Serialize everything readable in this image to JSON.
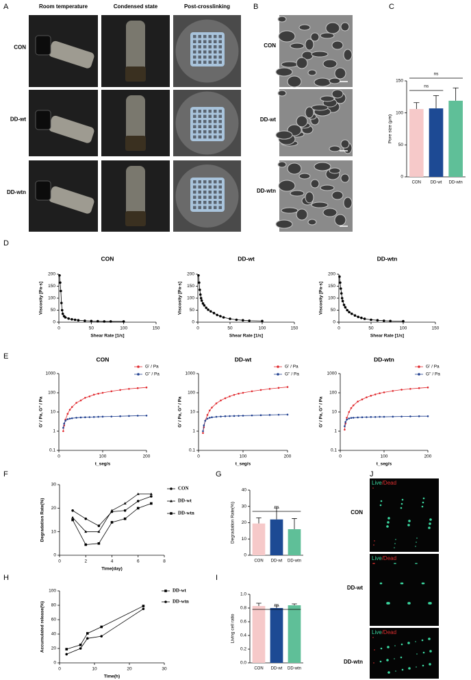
{
  "panel_labels": [
    "A",
    "B",
    "C",
    "D",
    "E",
    "F",
    "G",
    "H",
    "I",
    "J"
  ],
  "photos_A": {
    "columns": [
      "Room temperature",
      "Condensed state",
      "Post-crosslinking"
    ],
    "rows": [
      "CON",
      "DD-wt",
      "DD-wtn"
    ]
  },
  "photos_B": {
    "rows": [
      "CON",
      "DD-wt",
      "DD-wtn"
    ]
  },
  "photos_J": {
    "rows": [
      "CON",
      "DD-wt",
      "DD-wtn"
    ],
    "stain_labels": [
      "Live",
      "/Dead"
    ]
  },
  "chart_data": [
    {
      "type": "bar",
      "ylabel": "Pore size (μm)",
      "categories": [
        "CON",
        "DD-wt",
        "DD-wtn"
      ],
      "values": [
        106,
        107,
        119
      ],
      "errors": [
        10,
        20,
        20
      ],
      "colors": [
        "#f6c9c9",
        "#1d4a94",
        "#5fbf98"
      ],
      "ylim": [
        0,
        150
      ],
      "yticks": [
        0,
        50,
        100,
        150
      ],
      "annotations": [
        "ns",
        "ns"
      ]
    },
    {
      "type": "line",
      "title": "CON",
      "xlabel": "Shear Rate [1/s]",
      "ylabel": "Viscosity [Pa·s]",
      "color": "#000000",
      "marker": "circle",
      "x": [
        1,
        2,
        3,
        4,
        5,
        6,
        8,
        10,
        15,
        20,
        25,
        30,
        40,
        50,
        60,
        70,
        80,
        100
      ],
      "values": [
        195,
        165,
        130,
        80,
        50,
        35,
        25,
        20,
        15,
        12,
        10,
        8,
        6,
        5,
        4,
        3,
        3,
        3
      ],
      "xlim": [
        0,
        150
      ],
      "xticks": [
        0,
        50,
        100,
        150
      ],
      "ylim": [
        0,
        200
      ],
      "yticks": [
        0,
        50,
        100,
        150,
        200
      ]
    },
    {
      "type": "line",
      "title": "DD-wt",
      "xlabel": "Shear Rate [1/s]",
      "ylabel": "Viscosity [Pa·s]",
      "color": "#000000",
      "marker": "circle",
      "x": [
        1,
        2,
        3,
        4,
        5,
        6,
        8,
        10,
        13,
        16,
        20,
        25,
        30,
        35,
        40,
        50,
        60,
        70,
        80,
        100
      ],
      "values": [
        195,
        165,
        135,
        115,
        100,
        90,
        78,
        70,
        60,
        52,
        45,
        38,
        30,
        25,
        20,
        14,
        10,
        8,
        6,
        5
      ],
      "xlim": [
        0,
        150
      ],
      "xticks": [
        0,
        50,
        100,
        150
      ],
      "ylim": [
        0,
        200
      ],
      "yticks": [
        0,
        50,
        100,
        150,
        200
      ]
    },
    {
      "type": "line",
      "title": "DD-wtn",
      "xlabel": "Shear Rate [1/s]",
      "ylabel": "Viscosity [Pa·s]",
      "color": "#000000",
      "marker": "circle",
      "x": [
        1,
        2,
        3,
        4,
        5,
        6,
        8,
        10,
        13,
        16,
        20,
        25,
        30,
        35,
        40,
        50,
        60,
        70,
        80,
        100
      ],
      "values": [
        190,
        165,
        140,
        120,
        100,
        88,
        72,
        62,
        50,
        42,
        35,
        28,
        22,
        18,
        14,
        10,
        8,
        6,
        5,
        4
      ],
      "xlim": [
        0,
        150
      ],
      "xticks": [
        0,
        50,
        100,
        150
      ],
      "ylim": [
        0,
        200
      ],
      "yticks": [
        0,
        50,
        100,
        150,
        200
      ]
    },
    {
      "type": "line",
      "title": "CON",
      "xlabel": "t_seg/s",
      "ylabel": "G' / Pa, G'' / Pa",
      "log_y": true,
      "x": [
        10,
        12,
        15,
        20,
        25,
        30,
        40,
        50,
        60,
        70,
        80,
        90,
        100,
        120,
        140,
        160,
        180,
        200
      ],
      "series": [
        {
          "name": "G' / Pa",
          "color": "#e0262b",
          "marker": "circle",
          "values": [
            1,
            2,
            4,
            8,
            13,
            18,
            30,
            40,
            55,
            65,
            80,
            90,
            100,
            120,
            140,
            160,
            175,
            190
          ]
        },
        {
          "name": "G'' / Pa",
          "color": "#1f3f8f",
          "marker": "circle",
          "values": [
            1.5,
            2.5,
            3.5,
            4.2,
            4.5,
            4.7,
            5,
            5.2,
            5.3,
            5.4,
            5.5,
            5.6,
            5.7,
            5.8,
            6,
            6.2,
            6.4,
            6.5
          ]
        }
      ],
      "xlim": [
        0,
        200
      ],
      "xticks": [
        0,
        100,
        200
      ],
      "ylim": [
        0.1,
        1000
      ],
      "yticks": [
        0.1,
        1,
        10,
        100,
        1000
      ]
    },
    {
      "type": "line",
      "title": "DD-wt",
      "xlabel": "t_seg/s",
      "ylabel": "G' / Pa, G'' / Pa",
      "log_y": true,
      "x": [
        10,
        12,
        15,
        20,
        25,
        30,
        40,
        50,
        60,
        70,
        80,
        90,
        100,
        120,
        140,
        160,
        180,
        200
      ],
      "series": [
        {
          "name": "G' / Pa",
          "color": "#e0262b",
          "marker": "circle",
          "values": [
            0.8,
            1.6,
            3.5,
            7,
            12,
            17,
            28,
            40,
            52,
            65,
            78,
            90,
            100,
            120,
            140,
            160,
            180,
            200
          ]
        },
        {
          "name": "G'' / Pa",
          "color": "#1f3f8f",
          "marker": "circle",
          "values": [
            1,
            2,
            3.5,
            4.5,
            5,
            5.3,
            5.6,
            5.8,
            6,
            6.1,
            6.2,
            6.3,
            6.4,
            6.6,
            6.8,
            7,
            7.2,
            7.3
          ]
        }
      ],
      "xlim": [
        0,
        200
      ],
      "xticks": [
        0,
        100,
        200
      ],
      "ylim": [
        0.1,
        1000
      ],
      "yticks": [
        0.1,
        1,
        10,
        100,
        1000
      ]
    },
    {
      "type": "line",
      "title": "DD-wtn",
      "xlabel": "t_seg/s",
      "ylabel": "G' / Pa, G'' / Pa",
      "log_y": true,
      "x": [
        10,
        12,
        15,
        20,
        25,
        30,
        40,
        50,
        60,
        70,
        80,
        90,
        100,
        120,
        140,
        160,
        180,
        200
      ],
      "series": [
        {
          "name": "G' / Pa",
          "color": "#e0262b",
          "marker": "circle",
          "values": [
            1.2,
            2.5,
            5,
            10,
            16,
            22,
            35,
            45,
            58,
            70,
            82,
            95,
            105,
            125,
            145,
            160,
            175,
            190
          ]
        },
        {
          "name": "G'' / Pa",
          "color": "#1f3f8f",
          "marker": "circle",
          "values": [
            1.8,
            3,
            4,
            4.6,
            4.9,
            5,
            5.2,
            5.3,
            5.4,
            5.5,
            5.5,
            5.6,
            5.6,
            5.7,
            5.8,
            5.9,
            6,
            6
          ]
        }
      ],
      "xlim": [
        0,
        200
      ],
      "xticks": [
        0,
        100,
        200
      ],
      "ylim": [
        0.1,
        1000
      ],
      "yticks": [
        0.1,
        1,
        10,
        100,
        1000
      ]
    },
    {
      "type": "line",
      "xlabel": "Time(day)",
      "ylabel": "Degradation Rate(%)",
      "x": [
        1,
        2,
        3,
        4,
        5,
        6,
        7
      ],
      "series": [
        {
          "name": "CON",
          "color": "#000000",
          "marker": "circle",
          "values": [
            19,
            15.5,
            12.5,
            18.5,
            19,
            23,
            25
          ]
        },
        {
          "name": "DD-wt",
          "color": "#000000",
          "marker": "triangle",
          "values": [
            16,
            10,
            10,
            19,
            22,
            26,
            26
          ]
        },
        {
          "name": "DD-wtn",
          "color": "#000000",
          "marker": "square",
          "values": [
            15,
            4.5,
            5,
            14,
            15.5,
            20,
            22
          ]
        }
      ],
      "xlim": [
        0,
        8
      ],
      "xticks": [
        0,
        2,
        4,
        6,
        8
      ],
      "ylim": [
        0,
        30
      ],
      "yticks": [
        0,
        10,
        20,
        30
      ]
    },
    {
      "type": "bar",
      "ylabel": "Degradation Rate(%)",
      "categories": [
        "CON",
        "DD-wt",
        "DD-wtn"
      ],
      "values": [
        19.5,
        22,
        16
      ],
      "errors": [
        3.5,
        7,
        6.5
      ],
      "colors": [
        "#f6c9c9",
        "#1d4a94",
        "#5fbf98"
      ],
      "ylim": [
        0,
        40
      ],
      "yticks": [
        0,
        10,
        20,
        30,
        40
      ],
      "annotations": [
        "ns"
      ]
    },
    {
      "type": "line",
      "xlabel": "Time(h)",
      "ylabel": "Accumulated release(%)",
      "x": [
        2,
        6,
        8,
        12,
        24
      ],
      "series": [
        {
          "name": "DD-wt",
          "color": "#000000",
          "marker": "square",
          "values": [
            19,
            25,
            41,
            50,
            79
          ]
        },
        {
          "name": "DD-wtn",
          "color": "#000000",
          "marker": "circle",
          "values": [
            12,
            20,
            34,
            37,
            75
          ]
        }
      ],
      "xlim": [
        0,
        30
      ],
      "xticks": [
        0,
        10,
        20,
        30
      ],
      "ylim": [
        0,
        100
      ],
      "yticks": [
        0,
        20,
        40,
        60,
        80,
        100
      ]
    },
    {
      "type": "bar",
      "ylabel": "Living cell ratio",
      "categories": [
        "CON",
        "DD-wt",
        "DD-wtn"
      ],
      "values": [
        0.83,
        0.8,
        0.84
      ],
      "errors": [
        0.04,
        0.03,
        0.02
      ],
      "colors": [
        "#f6c9c9",
        "#1d4a94",
        "#5fbf98"
      ],
      "ylim": [
        0,
        1
      ],
      "yticks": [
        {
          "value": 0,
          "label": "0.0"
        },
        0.2,
        0.4,
        0.6,
        0.8,
        {
          "value": 1,
          "label": "1.0"
        }
      ],
      "annotations": [
        "ns"
      ]
    }
  ]
}
